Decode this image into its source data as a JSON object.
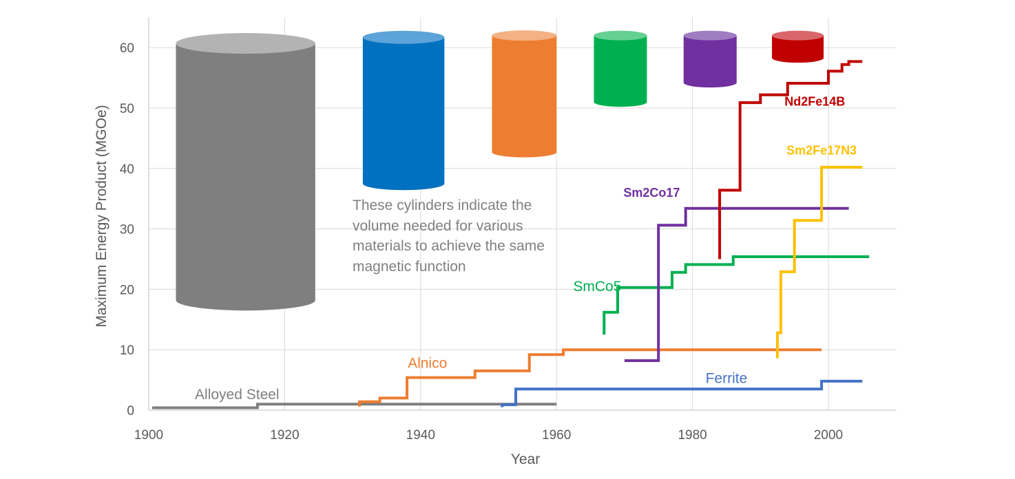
{
  "chart_data": {
    "type": "line",
    "xlabel": "Year",
    "ylabel": "Maximum Energy Product (MGOe)",
    "xlim": [
      1900,
      2010
    ],
    "ylim": [
      0,
      65
    ],
    "xticks": [
      1900,
      1920,
      1940,
      1960,
      1980,
      2000
    ],
    "yticks": [
      0,
      10,
      20,
      30,
      40,
      50,
      60
    ],
    "grid": "vertical and horizontal",
    "annotation": [
      "These cylinders indicate the",
      "volume needed for various",
      "materials to achieve the same",
      "magnetic function"
    ],
    "series": [
      {
        "name": "Alloyed Steel",
        "color": "#7f7f7f",
        "step": true,
        "points": [
          [
            1900.5,
            0.4
          ],
          [
            1916,
            0.4
          ],
          [
            1916,
            1.0
          ],
          [
            1960,
            1.0
          ]
        ]
      },
      {
        "name": "Alnico",
        "color": "#ed7d31",
        "step": true,
        "points": [
          [
            1931,
            0.6
          ],
          [
            1931,
            1.4
          ],
          [
            1934,
            1.4
          ],
          [
            1934,
            2.0
          ],
          [
            1938,
            2.0
          ],
          [
            1938,
            5.4
          ],
          [
            1948,
            5.4
          ],
          [
            1948,
            6.5
          ],
          [
            1956,
            6.5
          ],
          [
            1956,
            9.2
          ],
          [
            1961,
            9.2
          ],
          [
            1961,
            10.0
          ],
          [
            1999,
            10.0
          ]
        ]
      },
      {
        "name": "Ferrite",
        "color": "#4472c4",
        "step": true,
        "points": [
          [
            1952,
            0.5
          ],
          [
            1952,
            0.9
          ],
          [
            1954,
            0.9
          ],
          [
            1954,
            3.5
          ],
          [
            1999,
            3.5
          ],
          [
            1999,
            4.8
          ],
          [
            2005,
            4.8
          ]
        ]
      },
      {
        "name": "SmCo5",
        "color": "#00b050",
        "step": true,
        "points": [
          [
            1967,
            12.5
          ],
          [
            1967,
            16.2
          ],
          [
            1969,
            16.2
          ],
          [
            1969,
            20.3
          ],
          [
            1977,
            20.3
          ],
          [
            1977,
            22.8
          ],
          [
            1979,
            22.8
          ],
          [
            1979,
            24.1
          ],
          [
            1986,
            24.1
          ],
          [
            1986,
            25.4
          ],
          [
            2006,
            25.4
          ]
        ]
      },
      {
        "name": "Sm2Co17",
        "color": "#7030a0",
        "step": true,
        "points": [
          [
            1970,
            8.2
          ],
          [
            1975,
            8.2
          ],
          [
            1975,
            30.6
          ],
          [
            1979,
            30.6
          ],
          [
            1979,
            33.4
          ],
          [
            2003,
            33.4
          ]
        ]
      },
      {
        "name": "Nd2Fe14B",
        "color": "#c00000",
        "step": true,
        "points": [
          [
            1984,
            25.0
          ],
          [
            1984,
            36.4
          ],
          [
            1987,
            36.4
          ],
          [
            1987,
            50.9
          ],
          [
            1990,
            50.9
          ],
          [
            1990,
            52.2
          ],
          [
            1994,
            52.2
          ],
          [
            1994,
            54.1
          ],
          [
            2000,
            54.1
          ],
          [
            2000,
            56.1
          ],
          [
            2002,
            56.1
          ],
          [
            2002,
            57.2
          ],
          [
            2003,
            57.2
          ],
          [
            2003,
            57.7
          ],
          [
            2005,
            57.7
          ]
        ]
      },
      {
        "name": "Sm2Fe17N3",
        "color": "#ffc000",
        "step": true,
        "points": [
          [
            1992.5,
            8.6
          ],
          [
            1992.5,
            12.8
          ],
          [
            1993,
            12.8
          ],
          [
            1993,
            22.9
          ],
          [
            1995,
            22.9
          ],
          [
            1995,
            31.4
          ],
          [
            1999,
            31.4
          ],
          [
            1999,
            40.2
          ],
          [
            2005,
            40.2
          ]
        ]
      }
    ],
    "series_labels": [
      {
        "series": "Alloyed Steel",
        "text": "Alloyed Steel",
        "x": 1913,
        "y": 1.8,
        "color": "#7f7f7f",
        "bold": false
      },
      {
        "series": "Alnico",
        "text": "Alnico",
        "x": 1941,
        "y": 7.0,
        "color": "#ed7d31",
        "bold": false
      },
      {
        "series": "Ferrite",
        "text": "Ferrite",
        "x": 1985,
        "y": 4.5,
        "color": "#4472c4",
        "bold": false
      },
      {
        "series": "SmCo5",
        "text": "SmCo5",
        "x": 1966,
        "y": 19.7,
        "color": "#00b050",
        "bold": false
      },
      {
        "series": "Sm2Co17",
        "text": "Sm2Co17",
        "x": 1974,
        "y": 35.3,
        "color": "#7030a0",
        "bold": true
      },
      {
        "series": "Nd2Fe14B",
        "text": "Nd2Fe14B",
        "x": 1998,
        "y": 50.4,
        "color": "#c00000",
        "bold": true
      },
      {
        "series": "Sm2Fe17N3",
        "text": "Sm2Fe17N3",
        "x": 1999,
        "y": 42.3,
        "color": "#ffc000",
        "bold": true
      }
    ],
    "cylinders": [
      {
        "series": "Alloyed Steel",
        "body": "#7f7f7f",
        "top": "#b3b3b3",
        "x_range": [
          1904,
          1924.5
        ],
        "y_range": [
          18.2,
          60.7
        ]
      },
      {
        "series": "Alnico",
        "body": "#0070c0",
        "top": "#5ba3d9",
        "x_range": [
          1931.5,
          1943.5
        ],
        "y_range": [
          37.5,
          61.7
        ]
      },
      {
        "series": "Ferrite",
        "body": "#ed7d31",
        "top": "#f4b183",
        "x_range": [
          1950.5,
          1960
        ],
        "y_range": [
          42.7,
          62.0
        ]
      },
      {
        "series": "SmCo5",
        "body": "#00b050",
        "top": "#66cf92",
        "x_range": [
          1965.5,
          1973.3
        ],
        "y_range": [
          51.0,
          62.0
        ]
      },
      {
        "series": "Sm2Co17",
        "body": "#7030a0",
        "top": "#a07dc0",
        "x_range": [
          1978.7,
          1986.5
        ],
        "y_range": [
          54.2,
          62.0
        ]
      },
      {
        "series": "Nd2Fe14B",
        "body": "#c00000",
        "top": "#d9666b",
        "x_range": [
          1991.7,
          1999.3
        ],
        "y_range": [
          58.3,
          62.0
        ]
      }
    ]
  }
}
